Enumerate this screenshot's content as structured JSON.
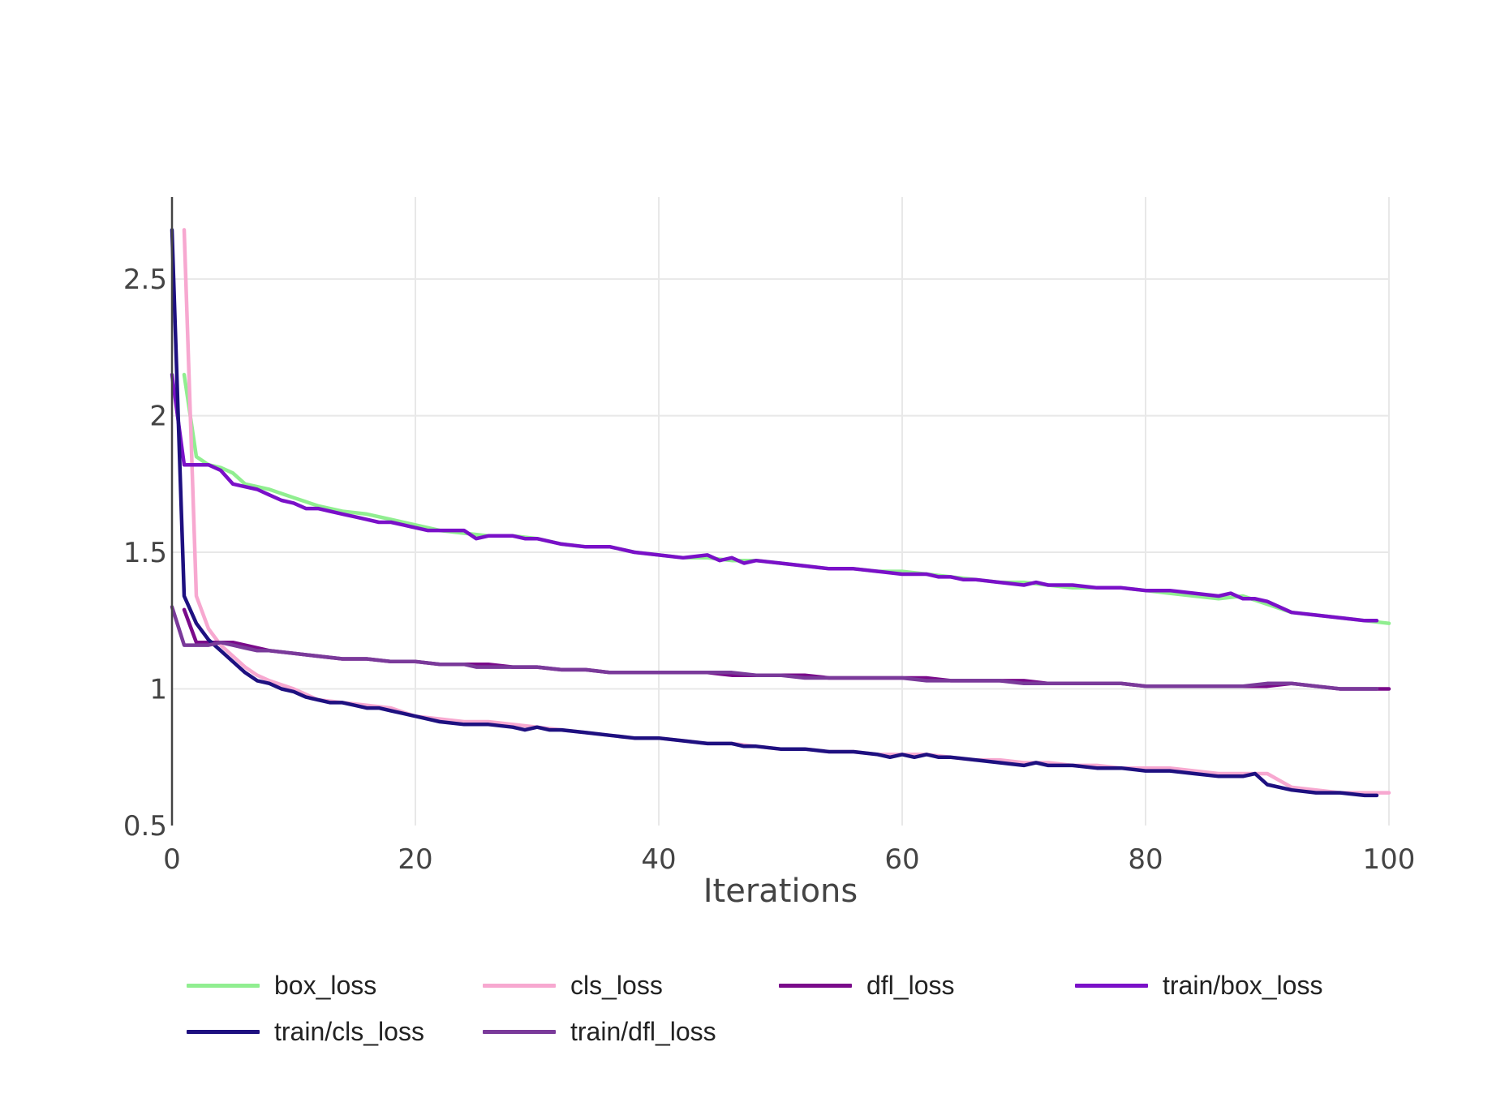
{
  "chart_data": {
    "type": "line",
    "title": "",
    "xlabel": "Iterations",
    "ylabel": "",
    "xlim": [
      0,
      100
    ],
    "ylim": [
      0.5,
      2.8
    ],
    "x_ticks": [
      0,
      20,
      40,
      60,
      80,
      100
    ],
    "y_ticks": [
      0.5,
      1,
      1.5,
      2,
      2.5
    ],
    "x_tick_labels": [
      "0",
      "20",
      "40",
      "60",
      "80",
      "100"
    ],
    "y_tick_labels": [
      "0.5",
      "1",
      "1.5",
      "2",
      "2.5"
    ],
    "grid": true,
    "legend_position": "bottom",
    "series": [
      {
        "name": "box_loss",
        "color": "#90ee90",
        "x": [
          1,
          2,
          3,
          4,
          5,
          6,
          8,
          10,
          12,
          14,
          16,
          18,
          20,
          22,
          24,
          26,
          28,
          30,
          32,
          34,
          36,
          38,
          40,
          42,
          44,
          46,
          48,
          50,
          52,
          54,
          56,
          58,
          60,
          62,
          64,
          66,
          68,
          70,
          72,
          74,
          76,
          78,
          80,
          82,
          84,
          86,
          88,
          90,
          92,
          94,
          96,
          98,
          100
        ],
        "y": [
          2.15,
          1.85,
          1.82,
          1.81,
          1.79,
          1.75,
          1.73,
          1.7,
          1.67,
          1.65,
          1.64,
          1.62,
          1.6,
          1.58,
          1.57,
          1.56,
          1.56,
          1.55,
          1.53,
          1.52,
          1.52,
          1.5,
          1.49,
          1.48,
          1.48,
          1.47,
          1.47,
          1.46,
          1.45,
          1.44,
          1.44,
          1.43,
          1.43,
          1.42,
          1.41,
          1.4,
          1.39,
          1.39,
          1.38,
          1.37,
          1.37,
          1.37,
          1.36,
          1.35,
          1.34,
          1.33,
          1.34,
          1.31,
          1.28,
          1.27,
          1.26,
          1.25,
          1.24
        ]
      },
      {
        "name": "cls_loss",
        "color": "#f7a8d0",
        "x": [
          1,
          2,
          3,
          4,
          5,
          6,
          7,
          8,
          10,
          12,
          14,
          16,
          18,
          20,
          22,
          24,
          26,
          28,
          30,
          32,
          34,
          36,
          38,
          40,
          42,
          44,
          46,
          48,
          50,
          52,
          54,
          56,
          58,
          60,
          62,
          64,
          66,
          68,
          70,
          72,
          74,
          76,
          78,
          80,
          82,
          84,
          86,
          88,
          90,
          92,
          94,
          96,
          98,
          100
        ],
        "y": [
          2.68,
          1.34,
          1.22,
          1.16,
          1.12,
          1.08,
          1.05,
          1.03,
          1.0,
          0.96,
          0.95,
          0.94,
          0.93,
          0.9,
          0.89,
          0.88,
          0.88,
          0.87,
          0.86,
          0.85,
          0.84,
          0.83,
          0.82,
          0.82,
          0.81,
          0.8,
          0.8,
          0.79,
          0.78,
          0.78,
          0.77,
          0.77,
          0.76,
          0.76,
          0.76,
          0.75,
          0.74,
          0.74,
          0.73,
          0.73,
          0.72,
          0.72,
          0.71,
          0.71,
          0.71,
          0.7,
          0.69,
          0.69,
          0.69,
          0.64,
          0.63,
          0.62,
          0.62,
          0.62
        ]
      },
      {
        "name": "dfl_loss",
        "color": "#7a0a8a",
        "x": [
          1,
          2,
          3,
          4,
          5,
          6,
          8,
          10,
          12,
          14,
          16,
          18,
          20,
          22,
          24,
          26,
          28,
          30,
          32,
          34,
          36,
          38,
          40,
          42,
          44,
          46,
          48,
          50,
          52,
          54,
          56,
          58,
          60,
          62,
          64,
          66,
          68,
          70,
          72,
          74,
          76,
          78,
          80,
          82,
          84,
          86,
          88,
          90,
          92,
          94,
          96,
          98,
          100
        ],
        "y": [
          1.29,
          1.17,
          1.17,
          1.17,
          1.17,
          1.16,
          1.14,
          1.13,
          1.12,
          1.11,
          1.11,
          1.1,
          1.1,
          1.09,
          1.09,
          1.09,
          1.08,
          1.08,
          1.07,
          1.07,
          1.06,
          1.06,
          1.06,
          1.06,
          1.06,
          1.05,
          1.05,
          1.05,
          1.05,
          1.04,
          1.04,
          1.04,
          1.04,
          1.04,
          1.03,
          1.03,
          1.03,
          1.03,
          1.02,
          1.02,
          1.02,
          1.02,
          1.01,
          1.01,
          1.01,
          1.01,
          1.01,
          1.01,
          1.02,
          1.01,
          1.0,
          1.0,
          1.0
        ]
      },
      {
        "name": "train/box_loss",
        "color": "#7a10c8",
        "x": [
          0,
          1,
          2,
          3,
          4,
          5,
          6,
          7,
          8,
          9,
          10,
          11,
          12,
          13,
          14,
          15,
          16,
          17,
          18,
          19,
          20,
          21,
          22,
          23,
          24,
          25,
          26,
          27,
          28,
          29,
          30,
          32,
          34,
          36,
          38,
          40,
          42,
          44,
          45,
          46,
          47,
          48,
          50,
          52,
          54,
          56,
          58,
          60,
          62,
          63,
          64,
          65,
          66,
          68,
          70,
          71,
          72,
          74,
          76,
          78,
          80,
          82,
          84,
          86,
          87,
          88,
          89,
          90,
          92,
          94,
          96,
          98,
          99
        ],
        "y": [
          2.15,
          1.82,
          1.82,
          1.82,
          1.8,
          1.75,
          1.74,
          1.73,
          1.71,
          1.69,
          1.68,
          1.66,
          1.66,
          1.65,
          1.64,
          1.63,
          1.62,
          1.61,
          1.61,
          1.6,
          1.59,
          1.58,
          1.58,
          1.58,
          1.58,
          1.55,
          1.56,
          1.56,
          1.56,
          1.55,
          1.55,
          1.53,
          1.52,
          1.52,
          1.5,
          1.49,
          1.48,
          1.49,
          1.47,
          1.48,
          1.46,
          1.47,
          1.46,
          1.45,
          1.44,
          1.44,
          1.43,
          1.42,
          1.42,
          1.41,
          1.41,
          1.4,
          1.4,
          1.39,
          1.38,
          1.39,
          1.38,
          1.38,
          1.37,
          1.37,
          1.36,
          1.36,
          1.35,
          1.34,
          1.35,
          1.33,
          1.33,
          1.32,
          1.28,
          1.27,
          1.26,
          1.25,
          1.25
        ]
      },
      {
        "name": "train/cls_loss",
        "color": "#1e1080",
        "x": [
          0,
          1,
          2,
          3,
          4,
          5,
          6,
          7,
          8,
          9,
          10,
          11,
          12,
          13,
          14,
          15,
          16,
          17,
          18,
          19,
          20,
          22,
          24,
          26,
          28,
          29,
          30,
          31,
          32,
          34,
          36,
          38,
          40,
          42,
          44,
          45,
          46,
          47,
          48,
          50,
          52,
          54,
          56,
          58,
          59,
          60,
          61,
          62,
          63,
          64,
          66,
          68,
          70,
          71,
          72,
          74,
          76,
          77,
          78,
          80,
          81,
          82,
          84,
          86,
          88,
          89,
          90,
          92,
          94,
          96,
          98,
          99
        ],
        "y": [
          2.68,
          1.34,
          1.24,
          1.18,
          1.14,
          1.1,
          1.06,
          1.03,
          1.02,
          1.0,
          0.99,
          0.97,
          0.96,
          0.95,
          0.95,
          0.94,
          0.93,
          0.93,
          0.92,
          0.91,
          0.9,
          0.88,
          0.87,
          0.87,
          0.86,
          0.85,
          0.86,
          0.85,
          0.85,
          0.84,
          0.83,
          0.82,
          0.82,
          0.81,
          0.8,
          0.8,
          0.8,
          0.79,
          0.79,
          0.78,
          0.78,
          0.77,
          0.77,
          0.76,
          0.75,
          0.76,
          0.75,
          0.76,
          0.75,
          0.75,
          0.74,
          0.73,
          0.72,
          0.73,
          0.72,
          0.72,
          0.71,
          0.71,
          0.71,
          0.7,
          0.7,
          0.7,
          0.69,
          0.68,
          0.68,
          0.69,
          0.65,
          0.63,
          0.62,
          0.62,
          0.61,
          0.61
        ]
      },
      {
        "name": "train/dfl_loss",
        "color": "#7a3a9a",
        "x": [
          0,
          1,
          2,
          3,
          4,
          5,
          6,
          7,
          8,
          10,
          12,
          14,
          16,
          18,
          20,
          22,
          24,
          25,
          26,
          28,
          30,
          32,
          34,
          36,
          38,
          40,
          42,
          44,
          46,
          48,
          50,
          52,
          54,
          56,
          58,
          60,
          62,
          64,
          66,
          68,
          70,
          72,
          74,
          76,
          78,
          80,
          82,
          84,
          86,
          88,
          90,
          91,
          92,
          94,
          96,
          98,
          99
        ],
        "y": [
          1.3,
          1.16,
          1.16,
          1.16,
          1.17,
          1.16,
          1.15,
          1.14,
          1.14,
          1.13,
          1.12,
          1.11,
          1.11,
          1.1,
          1.1,
          1.09,
          1.09,
          1.08,
          1.08,
          1.08,
          1.08,
          1.07,
          1.07,
          1.06,
          1.06,
          1.06,
          1.06,
          1.06,
          1.06,
          1.05,
          1.05,
          1.04,
          1.04,
          1.04,
          1.04,
          1.04,
          1.03,
          1.03,
          1.03,
          1.03,
          1.02,
          1.02,
          1.02,
          1.02,
          1.02,
          1.01,
          1.01,
          1.01,
          1.01,
          1.01,
          1.02,
          1.02,
          1.02,
          1.01,
          1.0,
          1.0,
          1.0
        ]
      }
    ]
  }
}
